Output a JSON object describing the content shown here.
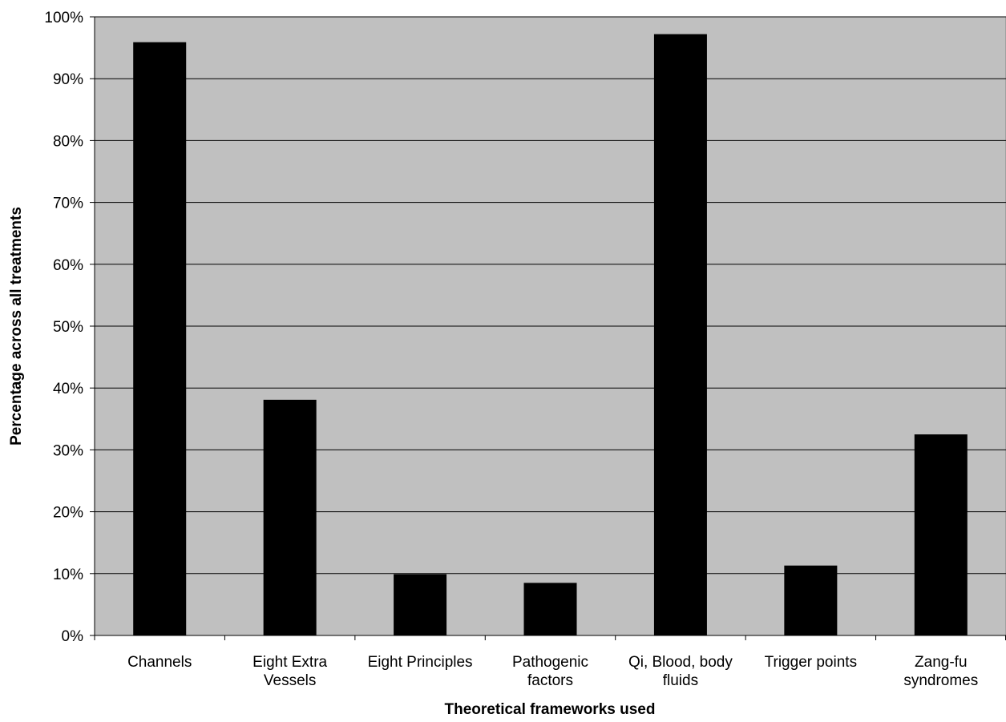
{
  "chart_data": {
    "type": "bar",
    "title": "",
    "xlabel": "Theoretical frameworks used",
    "ylabel": "Percentage across all treatments",
    "categories": [
      [
        "Channels"
      ],
      [
        "Eight Extra",
        "Vessels"
      ],
      [
        "Eight Principles"
      ],
      [
        "Pathogenic",
        "factors"
      ],
      [
        "Qi, Blood, body",
        "fluids"
      ],
      [
        "Trigger points"
      ],
      [
        "Zang-fu",
        "syndromes"
      ]
    ],
    "values": [
      95.9,
      38.1,
      9.9,
      8.5,
      97.2,
      11.3,
      32.5
    ],
    "ylim": [
      0,
      100
    ],
    "yticks": [
      "0%",
      "10%",
      "20%",
      "30%",
      "40%",
      "50%",
      "60%",
      "70%",
      "80%",
      "90%",
      "100%"
    ],
    "grid": true,
    "legend": "none",
    "colors": {
      "plot_bg": "#c0c0c0",
      "bar": "#000000",
      "grid": "#000000",
      "page_bg": "#ffffff"
    }
  }
}
